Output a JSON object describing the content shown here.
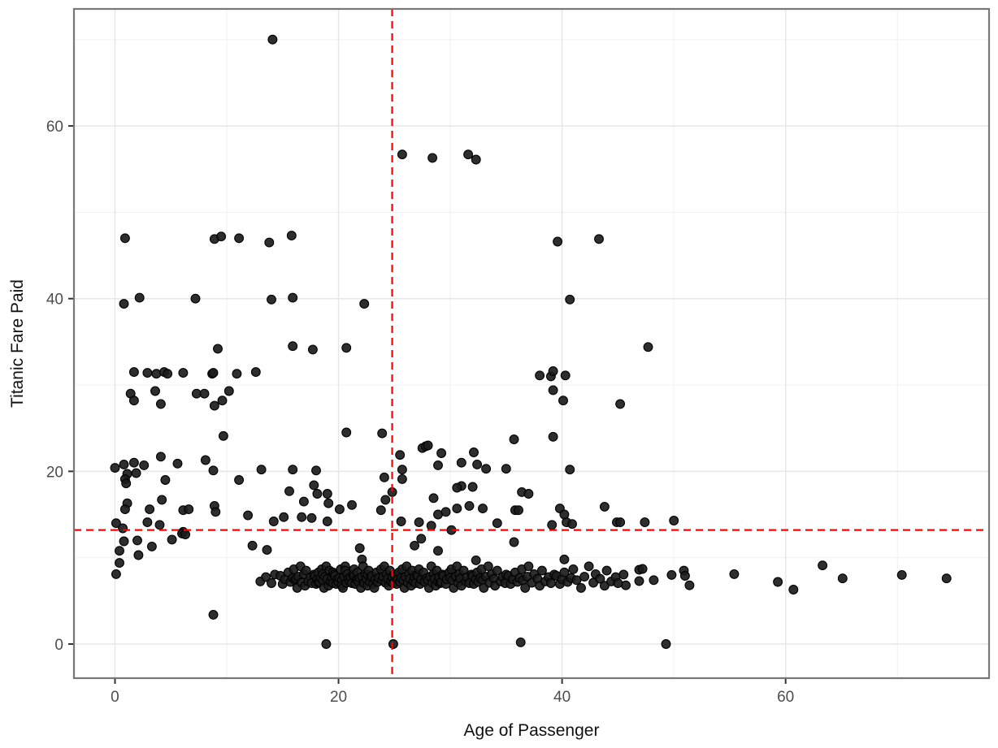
{
  "figure": {
    "xlabel": "Age of Passenger",
    "ylabel": "Titanic Fare Paid"
  },
  "colors": {
    "background": "#ffffff",
    "panel_background": "#ffffff",
    "panel_border": "#777777",
    "grid_major": "#e6e6e6",
    "grid_minor": "#f0f0f0",
    "tick_mark": "#333333",
    "tick_label": "#4d4d4d",
    "point_fill": "#1c1c1c",
    "point_stroke": "#000000",
    "reference_line": "#ff0000"
  },
  "chart_data": {
    "type": "scatter",
    "title": "",
    "xlabel": "Age of Passenger",
    "ylabel": "Titanic Fare Paid",
    "xlim": [
      -3.67,
      78.2
    ],
    "ylim": [
      -3.95,
      73.55
    ],
    "x_ticks": [
      0,
      20,
      40,
      60
    ],
    "y_ticks": [
      0,
      20,
      40,
      60
    ],
    "x_minor_ticks": [
      10,
      30,
      50,
      70
    ],
    "y_minor_ticks": [
      10,
      30,
      50,
      70
    ],
    "grid": true,
    "legend": "none",
    "reference_lines": {
      "vertical_x": 24.8,
      "horizontal_y": 13.2,
      "style": "dashed",
      "color": "#ff0000",
      "note": "dashed red mean lines: mean age ~24.8, mean fare ~13.2"
    },
    "points": [
      [
        14.1,
        70.0
      ],
      [
        25.7,
        56.7
      ],
      [
        28.4,
        56.3
      ],
      [
        31.6,
        56.7
      ],
      [
        32.3,
        56.1
      ],
      [
        0.9,
        47.0
      ],
      [
        8.9,
        46.9
      ],
      [
        9.5,
        47.2
      ],
      [
        11.1,
        47.0
      ],
      [
        13.8,
        46.5
      ],
      [
        15.8,
        47.3
      ],
      [
        39.6,
        46.6
      ],
      [
        43.3,
        46.9
      ],
      [
        0.8,
        39.4
      ],
      [
        2.2,
        40.1
      ],
      [
        7.2,
        40.0
      ],
      [
        14.0,
        39.9
      ],
      [
        15.9,
        40.1
      ],
      [
        22.3,
        39.4
      ],
      [
        40.7,
        39.9
      ],
      [
        9.2,
        34.2
      ],
      [
        15.9,
        34.5
      ],
      [
        17.7,
        34.1
      ],
      [
        20.7,
        34.3
      ],
      [
        47.7,
        34.4
      ],
      [
        1.7,
        31.5
      ],
      [
        2.9,
        31.4
      ],
      [
        3.7,
        31.3
      ],
      [
        4.4,
        31.5
      ],
      [
        4.7,
        31.3
      ],
      [
        6.1,
        31.4
      ],
      [
        8.7,
        31.3
      ],
      [
        8.8,
        31.4
      ],
      [
        10.9,
        31.3
      ],
      [
        12.6,
        31.5
      ],
      [
        38.0,
        31.1
      ],
      [
        39.0,
        31.0
      ],
      [
        39.2,
        31.6
      ],
      [
        40.3,
        31.1
      ],
      [
        1.4,
        29.0
      ],
      [
        1.7,
        28.2
      ],
      [
        3.6,
        29.3
      ],
      [
        4.1,
        27.8
      ],
      [
        7.3,
        29.0
      ],
      [
        8.0,
        29.0
      ],
      [
        8.9,
        27.6
      ],
      [
        9.6,
        28.2
      ],
      [
        10.2,
        29.3
      ],
      [
        39.2,
        29.4
      ],
      [
        40.1,
        28.2
      ],
      [
        45.2,
        27.8
      ],
      [
        9.7,
        24.1
      ],
      [
        20.7,
        24.5
      ],
      [
        23.9,
        24.4
      ],
      [
        35.7,
        23.7
      ],
      [
        39.2,
        24.0
      ],
      [
        25.5,
        21.9
      ],
      [
        27.5,
        22.7
      ],
      [
        27.8,
        22.9
      ],
      [
        28.0,
        23.0
      ],
      [
        29.2,
        22.1
      ],
      [
        31.0,
        21.0
      ],
      [
        32.1,
        22.2
      ],
      [
        0.0,
        20.4
      ],
      [
        0.8,
        20.8
      ],
      [
        1.1,
        19.7
      ],
      [
        1.7,
        21.0
      ],
      [
        1.9,
        19.8
      ],
      [
        2.6,
        20.7
      ],
      [
        4.1,
        21.7
      ],
      [
        5.6,
        20.9
      ],
      [
        8.1,
        21.3
      ],
      [
        8.8,
        20.1
      ],
      [
        13.1,
        20.2
      ],
      [
        15.9,
        20.2
      ],
      [
        18.0,
        20.1
      ],
      [
        25.7,
        20.2
      ],
      [
        28.9,
        20.7
      ],
      [
        32.4,
        20.8
      ],
      [
        33.2,
        20.3
      ],
      [
        35.0,
        20.3
      ],
      [
        40.7,
        20.2
      ],
      [
        0.9,
        19.1
      ],
      [
        1.0,
        18.6
      ],
      [
        4.5,
        19.0
      ],
      [
        11.1,
        19.0
      ],
      [
        24.1,
        19.3
      ],
      [
        25.7,
        19.1
      ],
      [
        15.6,
        17.7
      ],
      [
        17.8,
        18.4
      ],
      [
        18.1,
        17.4
      ],
      [
        19.0,
        17.4
      ],
      [
        24.8,
        17.6
      ],
      [
        31.0,
        18.3
      ],
      [
        30.6,
        18.1
      ],
      [
        32.0,
        18.2
      ],
      [
        36.4,
        17.6
      ],
      [
        37.0,
        17.4
      ],
      [
        1.1,
        16.3
      ],
      [
        0.9,
        15.6
      ],
      [
        3.1,
        15.6
      ],
      [
        4.2,
        16.7
      ],
      [
        6.1,
        15.5
      ],
      [
        6.6,
        15.6
      ],
      [
        8.9,
        16.0
      ],
      [
        9.0,
        15.3
      ],
      [
        16.9,
        16.5
      ],
      [
        19.1,
        16.3
      ],
      [
        20.1,
        15.6
      ],
      [
        21.2,
        16.1
      ],
      [
        23.8,
        15.5
      ],
      [
        24.2,
        16.7
      ],
      [
        28.5,
        16.9
      ],
      [
        28.9,
        15.0
      ],
      [
        29.6,
        15.3
      ],
      [
        30.6,
        15.7
      ],
      [
        31.7,
        16.0
      ],
      [
        32.9,
        15.7
      ],
      [
        35.8,
        15.5
      ],
      [
        36.1,
        15.5
      ],
      [
        39.8,
        15.7
      ],
      [
        43.8,
        15.9
      ],
      [
        11.9,
        14.9
      ],
      [
        14.2,
        14.2
      ],
      [
        15.1,
        14.7
      ],
      [
        16.7,
        14.7
      ],
      [
        17.6,
        14.6
      ],
      [
        19.0,
        14.2
      ],
      [
        25.6,
        14.2
      ],
      [
        27.2,
        14.1
      ],
      [
        34.2,
        14.0
      ],
      [
        40.2,
        15.0
      ],
      [
        40.4,
        14.1
      ],
      [
        40.9,
        13.9
      ],
      [
        39.1,
        13.8
      ],
      [
        44.9,
        14.1
      ],
      [
        45.2,
        14.1
      ],
      [
        47.4,
        14.1
      ],
      [
        50.0,
        14.3
      ],
      [
        0.1,
        14.0
      ],
      [
        0.7,
        13.4
      ],
      [
        2.9,
        14.1
      ],
      [
        4.0,
        13.8
      ],
      [
        6.1,
        13.0
      ],
      [
        28.3,
        13.7
      ],
      [
        30.1,
        13.2
      ],
      [
        0.8,
        11.9
      ],
      [
        2.0,
        12.0
      ],
      [
        0.4,
        10.8
      ],
      [
        2.1,
        10.3
      ],
      [
        3.3,
        11.3
      ],
      [
        5.1,
        12.1
      ],
      [
        6.0,
        12.8
      ],
      [
        6.3,
        12.7
      ],
      [
        12.3,
        11.4
      ],
      [
        13.6,
        10.9
      ],
      [
        21.9,
        11.1
      ],
      [
        26.8,
        11.4
      ],
      [
        27.4,
        12.2
      ],
      [
        28.9,
        10.8
      ],
      [
        35.7,
        11.8
      ],
      [
        0.4,
        9.4
      ],
      [
        0.1,
        8.1
      ],
      [
        8.8,
        3.4
      ],
      [
        22.1,
        9.8
      ],
      [
        32.3,
        9.7
      ],
      [
        40.2,
        9.8
      ],
      [
        18.9,
        0.0
      ],
      [
        24.9,
        0.0
      ],
      [
        36.3,
        0.2
      ],
      [
        49.3,
        0.0
      ],
      [
        45.7,
        6.8
      ],
      [
        46.9,
        8.6
      ],
      [
        46.9,
        7.3
      ],
      [
        47.2,
        8.7
      ],
      [
        48.2,
        7.4
      ],
      [
        49.8,
        8.0
      ],
      [
        50.9,
        8.5
      ],
      [
        51.0,
        7.9
      ],
      [
        51.4,
        6.8
      ],
      [
        55.4,
        8.1
      ],
      [
        59.3,
        7.2
      ],
      [
        60.7,
        6.3
      ],
      [
        63.3,
        9.1
      ],
      [
        65.1,
        7.6
      ],
      [
        70.4,
        8.0
      ],
      [
        74.4,
        7.6
      ],
      [
        13.0,
        7.25
      ],
      [
        13.5,
        7.75
      ],
      [
        14.0,
        7.05
      ],
      [
        14.3,
        8.05
      ],
      [
        14.8,
        7.9
      ],
      [
        15.0,
        6.95
      ],
      [
        15.2,
        7.5
      ],
      [
        15.5,
        8.3
      ],
      [
        15.7,
        7.2
      ],
      [
        15.9,
        7.65
      ],
      [
        16.0,
        8.66
      ],
      [
        16.1,
        7.4
      ],
      [
        16.2,
        7.55
      ],
      [
        16.3,
        6.5
      ],
      [
        16.4,
        7.8
      ],
      [
        16.6,
        9.0
      ],
      [
        16.7,
        7.1
      ],
      [
        16.9,
        8.1
      ],
      [
        17.0,
        6.75
      ],
      [
        17.1,
        8.5
      ],
      [
        17.3,
        7.25
      ],
      [
        17.5,
        7.75
      ],
      [
        17.6,
        7.05
      ],
      [
        17.8,
        8.05
      ],
      [
        17.9,
        7.9
      ],
      [
        18.0,
        6.95
      ],
      [
        18.1,
        7.5
      ],
      [
        18.2,
        8.3
      ],
      [
        18.2,
        7.1
      ],
      [
        18.3,
        7.2
      ],
      [
        18.4,
        7.65
      ],
      [
        18.5,
        8.66
      ],
      [
        18.6,
        7.4
      ],
      [
        18.6,
        8.1
      ],
      [
        18.7,
        6.5
      ],
      [
        18.8,
        7.8
      ],
      [
        18.9,
        9.0
      ],
      [
        19.0,
        7.55
      ],
      [
        19.1,
        6.75
      ],
      [
        19.2,
        8.5
      ],
      [
        19.3,
        7.25
      ],
      [
        19.4,
        7.75
      ],
      [
        19.5,
        7.05
      ],
      [
        19.5,
        8.3
      ],
      [
        19.6,
        8.05
      ],
      [
        19.7,
        7.9
      ],
      [
        19.8,
        6.95
      ],
      [
        19.9,
        7.5
      ],
      [
        20.0,
        7.2
      ],
      [
        20.1,
        7.65
      ],
      [
        20.2,
        8.66
      ],
      [
        20.3,
        7.4
      ],
      [
        20.3,
        6.75
      ],
      [
        20.4,
        6.5
      ],
      [
        20.5,
        7.8
      ],
      [
        20.6,
        9.0
      ],
      [
        20.6,
        8.5
      ],
      [
        20.7,
        7.1
      ],
      [
        20.8,
        8.1
      ],
      [
        20.9,
        7.55
      ],
      [
        21.0,
        7.25
      ],
      [
        21.1,
        7.75
      ],
      [
        21.2,
        7.05
      ],
      [
        21.3,
        8.05
      ],
      [
        21.4,
        7.9
      ],
      [
        21.4,
        8.66
      ],
      [
        21.5,
        6.95
      ],
      [
        21.6,
        7.5
      ],
      [
        21.7,
        8.3
      ],
      [
        21.7,
        7.4
      ],
      [
        21.8,
        7.2
      ],
      [
        21.9,
        7.65
      ],
      [
        22.0,
        6.5
      ],
      [
        22.1,
        7.8
      ],
      [
        22.2,
        9.0
      ],
      [
        22.3,
        7.1
      ],
      [
        22.3,
        7.05
      ],
      [
        22.4,
        8.1
      ],
      [
        22.5,
        7.55
      ],
      [
        22.6,
        6.75
      ],
      [
        22.6,
        8.05
      ],
      [
        22.7,
        8.5
      ],
      [
        22.8,
        7.25
      ],
      [
        22.9,
        7.75
      ],
      [
        23.0,
        7.9
      ],
      [
        23.1,
        6.95
      ],
      [
        23.2,
        6.5
      ],
      [
        23.3,
        7.5
      ],
      [
        23.4,
        8.3
      ],
      [
        23.5,
        7.2
      ],
      [
        23.6,
        7.65
      ],
      [
        23.8,
        8.66
      ],
      [
        23.9,
        7.4
      ],
      [
        24.0,
        7.8
      ],
      [
        24.1,
        9.0
      ],
      [
        24.2,
        7.1
      ],
      [
        24.3,
        8.1
      ],
      [
        24.4,
        7.55
      ],
      [
        24.5,
        6.75
      ],
      [
        24.6,
        8.5
      ],
      [
        24.7,
        7.25
      ],
      [
        24.8,
        7.75
      ],
      [
        24.9,
        7.05
      ],
      [
        25.0,
        8.05
      ],
      [
        25.1,
        7.9
      ],
      [
        25.2,
        6.95
      ],
      [
        25.3,
        7.5
      ],
      [
        25.4,
        8.3
      ],
      [
        25.5,
        7.2
      ],
      [
        25.6,
        7.65
      ],
      [
        25.7,
        8.66
      ],
      [
        25.8,
        7.4
      ],
      [
        25.9,
        6.5
      ],
      [
        26.0,
        7.8
      ],
      [
        26.1,
        9.0
      ],
      [
        26.2,
        7.1
      ],
      [
        26.3,
        8.1
      ],
      [
        26.4,
        7.55
      ],
      [
        26.5,
        6.75
      ],
      [
        26.6,
        8.5
      ],
      [
        26.7,
        7.25
      ],
      [
        26.8,
        7.75
      ],
      [
        26.9,
        7.05
      ],
      [
        27.0,
        8.05
      ],
      [
        27.1,
        7.9
      ],
      [
        27.2,
        8.66
      ],
      [
        27.3,
        6.95
      ],
      [
        27.4,
        7.5
      ],
      [
        27.6,
        8.3
      ],
      [
        27.7,
        7.2
      ],
      [
        27.9,
        7.65
      ],
      [
        28.0,
        7.4
      ],
      [
        28.1,
        6.5
      ],
      [
        28.2,
        7.8
      ],
      [
        28.3,
        9.0
      ],
      [
        28.4,
        7.1
      ],
      [
        28.5,
        8.1
      ],
      [
        28.6,
        7.55
      ],
      [
        28.7,
        6.75
      ],
      [
        28.8,
        8.5
      ],
      [
        28.9,
        7.25
      ],
      [
        29.0,
        7.75
      ],
      [
        29.1,
        7.05
      ],
      [
        29.2,
        7.2
      ],
      [
        29.3,
        8.05
      ],
      [
        29.4,
        7.9
      ],
      [
        29.6,
        6.95
      ],
      [
        29.7,
        7.5
      ],
      [
        29.9,
        8.3
      ],
      [
        30.0,
        7.65
      ],
      [
        30.1,
        8.66
      ],
      [
        30.2,
        7.4
      ],
      [
        30.3,
        6.5
      ],
      [
        30.5,
        7.8
      ],
      [
        30.6,
        9.0
      ],
      [
        30.7,
        7.1
      ],
      [
        30.8,
        8.1
      ],
      [
        30.9,
        7.55
      ],
      [
        31.0,
        6.75
      ],
      [
        31.2,
        8.5
      ],
      [
        31.4,
        7.25
      ],
      [
        31.5,
        7.75
      ],
      [
        31.7,
        7.05
      ],
      [
        31.9,
        8.05
      ],
      [
        32.0,
        7.9
      ],
      [
        32.1,
        6.95
      ],
      [
        32.3,
        7.5
      ],
      [
        32.4,
        8.3
      ],
      [
        32.5,
        7.2
      ],
      [
        32.7,
        7.65
      ],
      [
        32.8,
        8.66
      ],
      [
        32.9,
        7.4
      ],
      [
        33.0,
        6.5
      ],
      [
        33.2,
        7.8
      ],
      [
        33.4,
        9.0
      ],
      [
        33.5,
        7.1
      ],
      [
        33.7,
        8.1
      ],
      [
        33.9,
        7.55
      ],
      [
        34.0,
        6.75
      ],
      [
        34.2,
        8.5
      ],
      [
        34.5,
        7.25
      ],
      [
        34.7,
        7.75
      ],
      [
        34.9,
        7.05
      ],
      [
        35.0,
        8.05
      ],
      [
        35.2,
        7.9
      ],
      [
        35.4,
        6.95
      ],
      [
        35.6,
        7.5
      ],
      [
        35.8,
        8.3
      ],
      [
        36.0,
        7.2
      ],
      [
        36.2,
        7.65
      ],
      [
        36.4,
        8.66
      ],
      [
        36.5,
        7.4
      ],
      [
        36.7,
        6.5
      ],
      [
        36.9,
        7.8
      ],
      [
        37.0,
        9.0
      ],
      [
        37.3,
        7.1
      ],
      [
        37.5,
        8.1
      ],
      [
        37.8,
        7.55
      ],
      [
        38.0,
        6.75
      ],
      [
        38.2,
        8.5
      ],
      [
        38.5,
        7.25
      ],
      [
        38.8,
        7.75
      ],
      [
        39.0,
        7.05
      ],
      [
        39.3,
        8.05
      ],
      [
        39.5,
        7.9
      ],
      [
        39.8,
        6.95
      ],
      [
        40.0,
        7.5
      ],
      [
        40.2,
        8.3
      ],
      [
        40.5,
        7.2
      ],
      [
        40.8,
        7.65
      ],
      [
        41.0,
        8.66
      ],
      [
        41.3,
        7.4
      ],
      [
        41.7,
        6.5
      ],
      [
        42.0,
        7.8
      ],
      [
        42.4,
        9.0
      ],
      [
        42.8,
        7.1
      ],
      [
        43.0,
        8.1
      ],
      [
        43.4,
        7.55
      ],
      [
        43.8,
        6.75
      ],
      [
        44.0,
        8.5
      ],
      [
        44.4,
        7.25
      ],
      [
        44.8,
        7.75
      ],
      [
        45.0,
        7.05
      ],
      [
        45.5,
        8.05
      ]
    ]
  }
}
